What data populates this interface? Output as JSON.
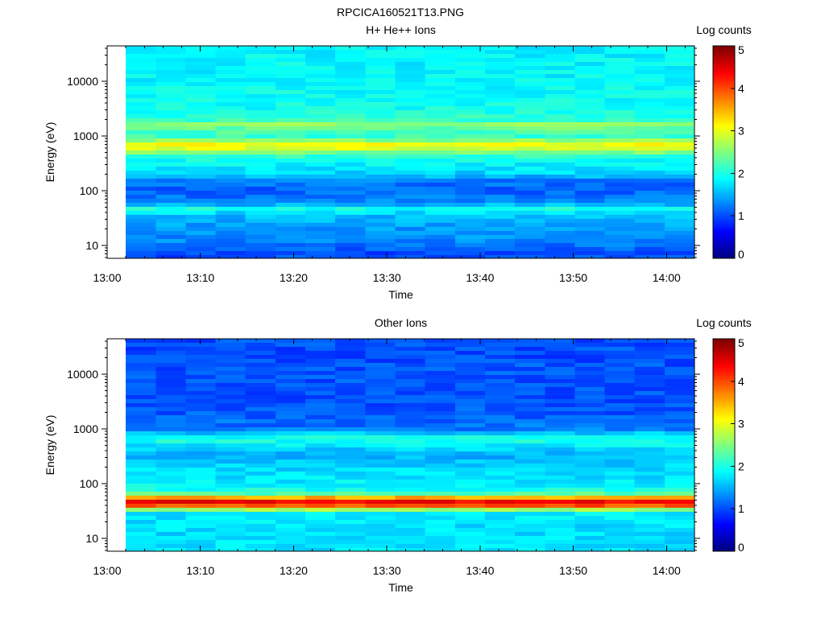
{
  "figure_title": "RPCICA160521T13.PNG",
  "chart_data": [
    {
      "type": "heatmap",
      "title": "H+ He++ Ions",
      "xlabel": "Time",
      "ylabel": "Energy (eV)",
      "x_ticks": [
        "13:00",
        "13:10",
        "13:20",
        "13:30",
        "13:40",
        "13:50",
        "14:00"
      ],
      "x_range_minutes": [
        0,
        63
      ],
      "data_start_minute": 2,
      "y_ticks": [
        "10",
        "100",
        "1000",
        "10000"
      ],
      "y_scale": "log",
      "y_range_eV": [
        5.8,
        44000
      ],
      "colorbar": {
        "label": "Log counts",
        "ticks": [
          "0",
          "1",
          "2",
          "3",
          "4",
          "5"
        ],
        "range": [
          0,
          5
        ],
        "colormap": "jet"
      },
      "time_bins": 19,
      "energy_profile": [
        {
          "e": 7,
          "v": 1.0
        },
        {
          "e": 9,
          "v": 1.1
        },
        {
          "e": 11,
          "v": 1.25
        },
        {
          "e": 15,
          "v": 1.35
        },
        {
          "e": 22,
          "v": 1.4
        },
        {
          "e": 30,
          "v": 1.5
        },
        {
          "e": 38,
          "v": 1.6
        },
        {
          "e": 44,
          "v": 2.2
        },
        {
          "e": 50,
          "v": 1.7
        },
        {
          "e": 58,
          "v": 1.4
        },
        {
          "e": 75,
          "v": 1.2
        },
        {
          "e": 100,
          "v": 1.1
        },
        {
          "e": 150,
          "v": 1.2
        },
        {
          "e": 200,
          "v": 1.65
        },
        {
          "e": 280,
          "v": 1.8
        },
        {
          "e": 400,
          "v": 2.0
        },
        {
          "e": 550,
          "v": 2.7
        },
        {
          "e": 650,
          "v": 3.3
        },
        {
          "e": 780,
          "v": 2.7
        },
        {
          "e": 1000,
          "v": 2.1
        },
        {
          "e": 1300,
          "v": 2.3
        },
        {
          "e": 1600,
          "v": 2.6
        },
        {
          "e": 2000,
          "v": 2.1
        },
        {
          "e": 3000,
          "v": 1.95
        },
        {
          "e": 6000,
          "v": 1.9
        },
        {
          "e": 12000,
          "v": 1.85
        },
        {
          "e": 25000,
          "v": 1.85
        },
        {
          "e": 44000,
          "v": 1.85
        }
      ]
    },
    {
      "type": "heatmap",
      "title": "Other Ions",
      "xlabel": "Time",
      "ylabel": "Energy (eV)",
      "x_ticks": [
        "13:00",
        "13:10",
        "13:20",
        "13:30",
        "13:40",
        "13:50",
        "14:00"
      ],
      "x_range_minutes": [
        0,
        63
      ],
      "data_start_minute": 2,
      "y_ticks": [
        "10",
        "100",
        "1000",
        "10000"
      ],
      "y_scale": "log",
      "y_range_eV": [
        5.8,
        44000
      ],
      "colorbar": {
        "label": "Log counts",
        "ticks": [
          "0",
          "1",
          "2",
          "3",
          "4",
          "5"
        ],
        "range": [
          0,
          5
        ],
        "colormap": "jet"
      },
      "time_bins": 19,
      "energy_profile": [
        {
          "e": 7,
          "v": 1.75
        },
        {
          "e": 12,
          "v": 1.7
        },
        {
          "e": 20,
          "v": 1.75
        },
        {
          "e": 30,
          "v": 1.8
        },
        {
          "e": 35,
          "v": 3.1
        },
        {
          "e": 40,
          "v": 4.1
        },
        {
          "e": 45,
          "v": 4.5
        },
        {
          "e": 52,
          "v": 4.0
        },
        {
          "e": 58,
          "v": 3.1
        },
        {
          "e": 65,
          "v": 2.3
        },
        {
          "e": 80,
          "v": 1.9
        },
        {
          "e": 120,
          "v": 1.75
        },
        {
          "e": 200,
          "v": 1.7
        },
        {
          "e": 300,
          "v": 1.5
        },
        {
          "e": 400,
          "v": 1.6
        },
        {
          "e": 550,
          "v": 1.9
        },
        {
          "e": 650,
          "v": 2.05
        },
        {
          "e": 780,
          "v": 1.7
        },
        {
          "e": 1000,
          "v": 1.2
        },
        {
          "e": 2000,
          "v": 1.05
        },
        {
          "e": 5000,
          "v": 1.0
        },
        {
          "e": 10000,
          "v": 1.05
        },
        {
          "e": 20000,
          "v": 1.0
        },
        {
          "e": 44000,
          "v": 1.0
        }
      ]
    }
  ]
}
